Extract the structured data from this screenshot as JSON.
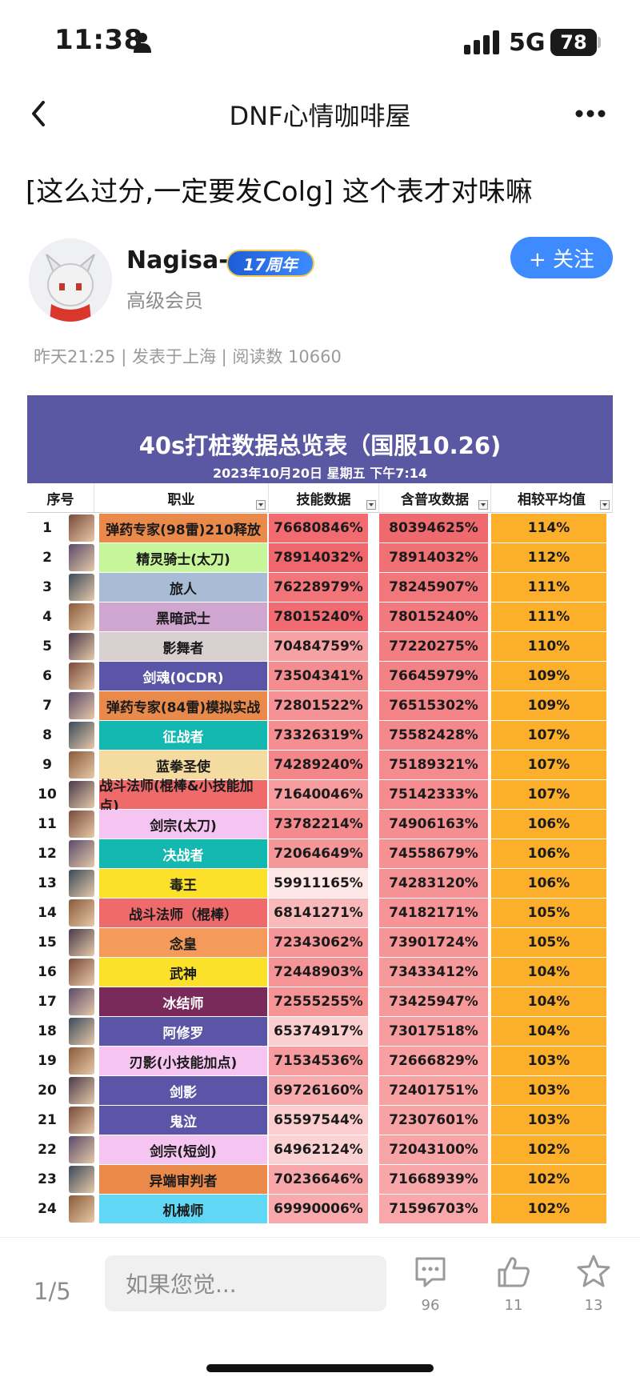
{
  "status_bar": {
    "time": "11:38",
    "network": "5G",
    "battery": "78"
  },
  "nav": {
    "title": "DNF心情咖啡屋"
  },
  "post": {
    "title": "[这么过分,一定要发Colg] 这个表才对味嘛",
    "meta": "昨天21:25 | 发表于上海 | 阅读数 10660"
  },
  "author": {
    "name": "Nagisa-",
    "badge": "17周年",
    "role": "高级会员",
    "follow_label": "+ 关注"
  },
  "sheet": {
    "title": "40s打桩数据总览表（国服10.26)",
    "subtitle": "2023年10月20日 星期五 下午7:14",
    "headers": [
      "序号",
      "职业",
      "技能数据",
      "含普攻数据",
      "相较平均值"
    ]
  },
  "chart_data": {
    "type": "table",
    "title": "40s打桩数据总览表（国服10.26)",
    "subtitle": "2023年10月20日 星期五 下午7:14",
    "columns": [
      "序号",
      "职业",
      "技能数据",
      "含普攻数据",
      "相较平均值"
    ],
    "rows": [
      {
        "rank": "1",
        "job": "弹药专家(98雷)210释放",
        "skill": "76680846%",
        "total": "80394625%",
        "avg": "114%",
        "job_color": "#e9894a",
        "skill_color": "#f26b70",
        "total_color": "#ef6a6e"
      },
      {
        "rank": "2",
        "job": "精灵骑士(太刀)",
        "skill": "78914032%",
        "total": "78914032%",
        "avg": "112%",
        "job_color": "#c6f59a",
        "skill_color": "#f0666d",
        "total_color": "#f07074"
      },
      {
        "rank": "3",
        "job": "旅人",
        "skill": "76228979%",
        "total": "78245907%",
        "avg": "111%",
        "job_color": "#a9bcd6",
        "skill_color": "#f2757a",
        "total_color": "#f1777b"
      },
      {
        "rank": "4",
        "job": "黑暗武士",
        "skill": "78015240%",
        "total": "78015240%",
        "avg": "111%",
        "job_color": "#cfa6cf",
        "skill_color": "#f06c72",
        "total_color": "#f2797d"
      },
      {
        "rank": "5",
        "job": "影舞者",
        "skill": "70484759%",
        "total": "77220275%",
        "avg": "110%",
        "job_color": "#d8d0d0",
        "skill_color": "#f6a2a4",
        "total_color": "#f27e82"
      },
      {
        "rank": "6",
        "job": "剑魂(0CDR)",
        "skill": "73504341%",
        "total": "76645979%",
        "avg": "109%",
        "job_color": "#5a55a6",
        "skill_color": "#f48d90",
        "total_color": "#f38286"
      },
      {
        "rank": "7",
        "job": "弹药专家(84雷)模拟实战",
        "skill": "72801522%",
        "total": "76515302%",
        "avg": "109%",
        "job_color": "#e9894a",
        "skill_color": "#f59295",
        "total_color": "#f38387"
      },
      {
        "rank": "8",
        "job": "征战者",
        "skill": "73326319%",
        "total": "75582428%",
        "avg": "107%",
        "job_color": "#13b8b0",
        "skill_color": "#f48e91",
        "total_color": "#f3898c"
      },
      {
        "rank": "9",
        "job": "蓝拳圣使",
        "skill": "74289240%",
        "total": "75189321%",
        "avg": "107%",
        "job_color": "#f4dca0",
        "skill_color": "#f38689",
        "total_color": "#f48c8f"
      },
      {
        "rank": "10",
        "job": "战斗法师(棍棒&小技能加点)",
        "skill": "71640046%",
        "total": "75142333%",
        "avg": "107%",
        "job_color": "#ef6a6a",
        "skill_color": "#f69b9e",
        "total_color": "#f48c8f"
      },
      {
        "rank": "11",
        "job": "剑宗(太刀)",
        "skill": "73782214%",
        "total": "74906163%",
        "avg": "106%",
        "job_color": "#f6c4f0",
        "skill_color": "#f48a8d",
        "total_color": "#f48e91"
      },
      {
        "rank": "12",
        "job": "决战者",
        "skill": "72064649%",
        "total": "74558679%",
        "avg": "106%",
        "job_color": "#13b8b0",
        "skill_color": "#f59799",
        "total_color": "#f59093"
      },
      {
        "rank": "13",
        "job": "毒王",
        "skill": "59911165%",
        "total": "74283120%",
        "avg": "106%",
        "job_color": "#fbe12a",
        "skill_color": "#fde6e6",
        "total_color": "#f59295"
      },
      {
        "rank": "14",
        "job": "战斗法师（棍棒）",
        "skill": "68141271%",
        "total": "74182171%",
        "avg": "105%",
        "job_color": "#ef6a6a",
        "skill_color": "#f9b8b9",
        "total_color": "#f59396"
      },
      {
        "rank": "15",
        "job": "念皇",
        "skill": "72343062%",
        "total": "73901724%",
        "avg": "105%",
        "job_color": "#f49a5a",
        "skill_color": "#f59597",
        "total_color": "#f59598"
      },
      {
        "rank": "16",
        "job": "武神",
        "skill": "72448903%",
        "total": "73433412%",
        "avg": "104%",
        "job_color": "#fbe12a",
        "skill_color": "#f59496",
        "total_color": "#f6999b"
      },
      {
        "rank": "17",
        "job": "冰结师",
        "skill": "72555255%",
        "total": "73425947%",
        "avg": "104%",
        "job_color": "#7a2a5a",
        "skill_color": "#f59395",
        "total_color": "#f6999b"
      },
      {
        "rank": "18",
        "job": "阿修罗",
        "skill": "65374917%",
        "total": "73017518%",
        "avg": "104%",
        "job_color": "#5a55a6",
        "skill_color": "#fbcfd0",
        "total_color": "#f69c9e"
      },
      {
        "rank": "19",
        "job": "刃影(小技能加点)",
        "skill": "71534536%",
        "total": "72666829%",
        "avg": "103%",
        "job_color": "#f6c4f0",
        "skill_color": "#f69c9e",
        "total_color": "#f79fa1"
      },
      {
        "rank": "20",
        "job": "剑影",
        "skill": "69726160%",
        "total": "72401751%",
        "avg": "103%",
        "job_color": "#5a55a6",
        "skill_color": "#f8abad",
        "total_color": "#f7a1a3"
      },
      {
        "rank": "21",
        "job": "鬼泣",
        "skill": "65597544%",
        "total": "72307601%",
        "avg": "103%",
        "job_color": "#5a55a6",
        "skill_color": "#fbcdce",
        "total_color": "#f7a2a4"
      },
      {
        "rank": "22",
        "job": "剑宗(短剑)",
        "skill": "64962124%",
        "total": "72043100%",
        "avg": "102%",
        "job_color": "#f6c4f0",
        "skill_color": "#fbd2d3",
        "total_color": "#f7a4a6"
      },
      {
        "rank": "23",
        "job": "异端审判者",
        "skill": "70236646%",
        "total": "71668939%",
        "avg": "102%",
        "job_color": "#e9894a",
        "skill_color": "#f7a7a9",
        "total_color": "#f7a7a9"
      },
      {
        "rank": "24",
        "job": "机械师",
        "skill": "69990006%",
        "total": "71596703%",
        "avg": "102%",
        "job_color": "#5fd7f5",
        "skill_color": "#f7a9ab",
        "total_color": "#f8a8aa"
      }
    ]
  },
  "footer": {
    "page_indicator": "1/5",
    "input_placeholder": "如果您觉...",
    "comments": "96",
    "likes": "11",
    "favorites": "13"
  },
  "colors": {
    "accent": "#3d8bff",
    "sheet_header": "#5a57a3",
    "avg_fill": "#fbaf2a"
  }
}
